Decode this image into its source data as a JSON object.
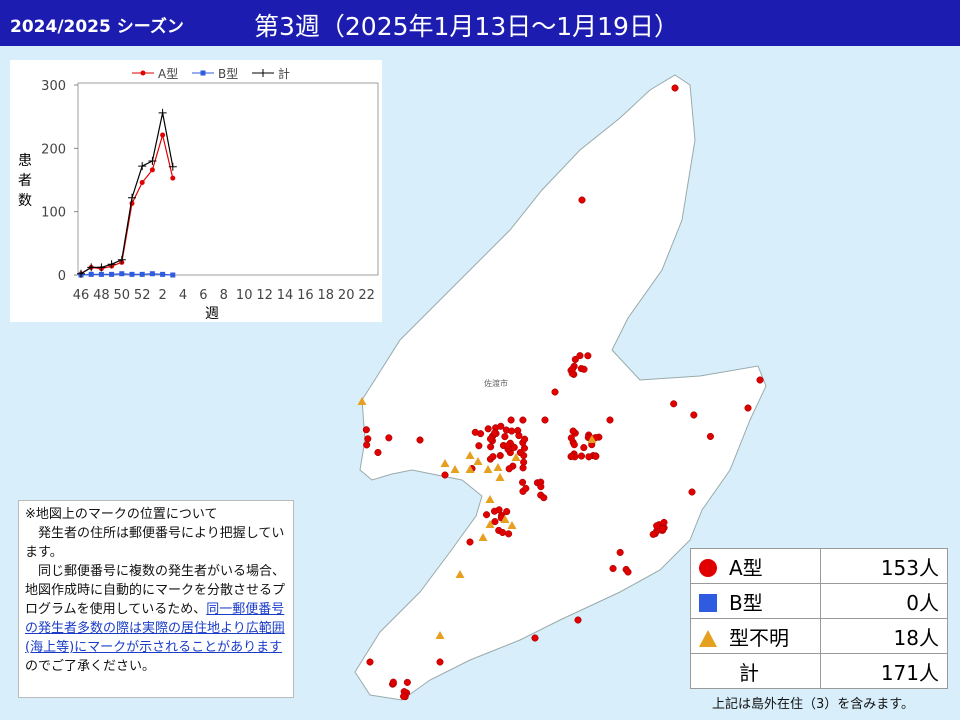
{
  "header": {
    "season": "2024/2025 シーズン",
    "week": "第3週（2025年1月13日～1月19日）"
  },
  "map": {
    "city_label": "佐渡市"
  },
  "chart_data": {
    "type": "line",
    "y_label": "患者数",
    "x_label": "週",
    "categories": [
      46,
      null,
      48,
      null,
      50,
      null,
      52,
      null,
      2,
      null,
      4,
      null,
      6,
      null,
      8,
      null,
      10,
      null,
      12,
      null,
      14,
      null,
      16,
      null,
      18,
      null,
      20,
      null,
      22
    ],
    "series": [
      {
        "name": "A型",
        "color": "#e00000",
        "values": [
          2,
          12,
          10,
          14,
          20,
          113,
          146,
          166,
          221,
          153,
          null,
          null,
          null,
          null,
          null,
          null,
          null,
          null,
          null,
          null,
          null,
          null,
          null,
          null,
          null,
          null,
          null,
          null,
          null
        ]
      },
      {
        "name": "B型",
        "color": "#2f5be0",
        "values": [
          0,
          1,
          1,
          1,
          2,
          1,
          1,
          2,
          1,
          0,
          null,
          null,
          null,
          null,
          null,
          null,
          null,
          null,
          null,
          null,
          null,
          null,
          null,
          null,
          null,
          null,
          null,
          null,
          null
        ]
      },
      {
        "name": "計",
        "color": "#000000",
        "values": [
          2,
          12,
          12,
          17,
          24,
          122,
          172,
          180,
          256,
          171,
          null,
          null,
          null,
          null,
          null,
          null,
          null,
          null,
          null,
          null,
          null,
          null,
          null,
          null,
          null,
          null,
          null,
          null,
          null
        ]
      }
    ],
    "ylim": [
      0,
      300
    ],
    "yticks": [
      0,
      100,
      200,
      300
    ]
  },
  "legend_table": {
    "rows": [
      [
        "A型",
        "153人"
      ],
      [
        "B型",
        "0人"
      ],
      [
        "型不明",
        "18人"
      ],
      [
        "計",
        "171人"
      ]
    ],
    "footnote": "上記は島外在住（3）を含みます。"
  },
  "note": {
    "title": "※地図上のマークの位置について",
    "p1": "発生者の住所は郵便番号により把握しています。",
    "p2a": "同じ郵便番号に複数の発生者がいる場合、地図作成時に自動的にマークを分散させるプログラムを使用しているため、",
    "p2link": "同一郵便番号の発生者多数の際は実際の居住地より広範囲(海上等)にマークが示されることがあります",
    "p2b": "のでご了承ください。"
  }
}
